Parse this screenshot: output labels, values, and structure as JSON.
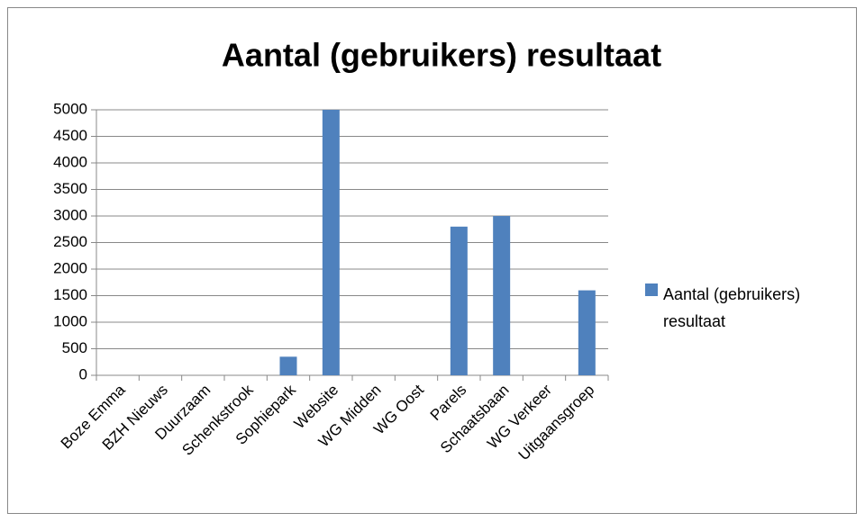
{
  "chart_data": {
    "type": "bar",
    "title": "Aantal (gebruikers) resultaat",
    "categories": [
      "Boze Emma",
      "BZH Nieuws",
      "Duurzaam",
      "Schenkstrook",
      "Sophiepark",
      "Website",
      "WG Midden",
      "WG Oost",
      "Parels",
      "Schaatsbaan",
      "WG Verkeer",
      "Uitgaansgroep"
    ],
    "series": [
      {
        "name": "Aantal (gebruikers) resultaat",
        "color": "#4f81bd",
        "values": [
          0,
          0,
          0,
          0,
          350,
          5000,
          0,
          0,
          2800,
          3000,
          0,
          1600
        ]
      }
    ],
    "ylim": [
      0,
      5000
    ],
    "yticks": [
      0,
      500,
      1000,
      1500,
      2000,
      2500,
      3000,
      3500,
      4000,
      4500,
      5000
    ],
    "grid": true,
    "legend": "right"
  }
}
